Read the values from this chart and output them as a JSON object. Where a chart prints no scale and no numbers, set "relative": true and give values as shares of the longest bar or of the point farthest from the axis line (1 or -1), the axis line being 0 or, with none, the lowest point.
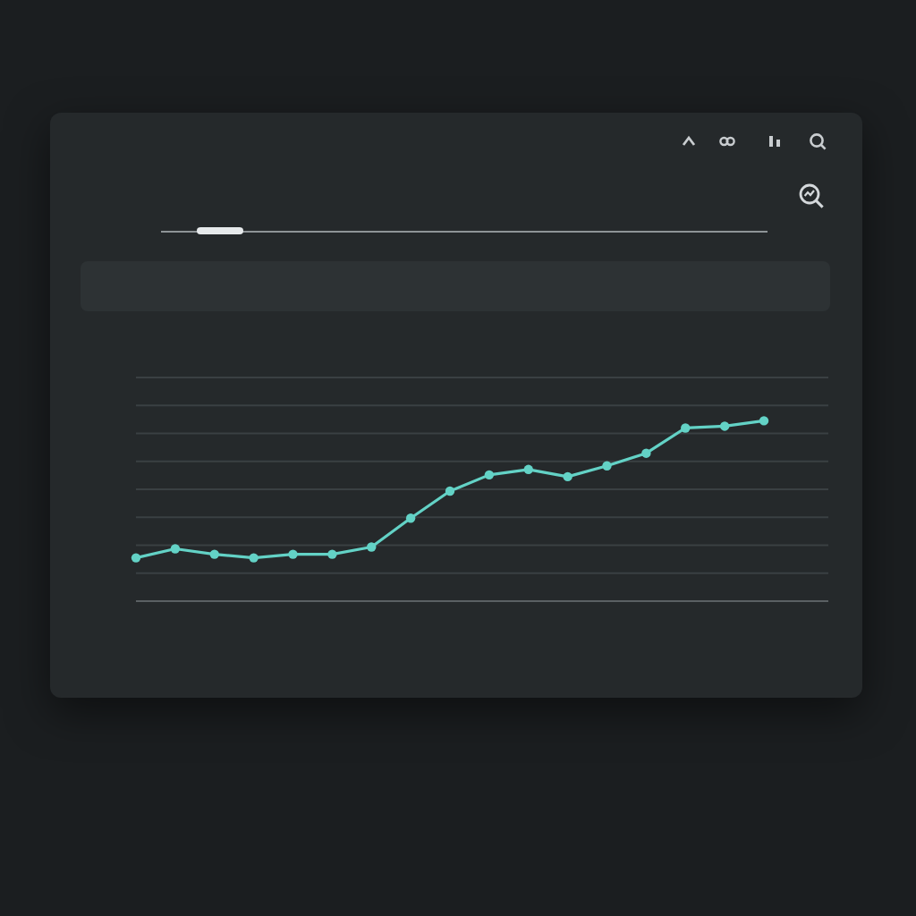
{
  "chart_data": {
    "type": "line",
    "categories": [
      null,
      null,
      null,
      null,
      null,
      null,
      null,
      null,
      null,
      null,
      null,
      null,
      null,
      null,
      null,
      null,
      null
    ],
    "series": [
      {
        "color": "#63d2c6",
        "values": [
          0.24,
          0.29,
          0.26,
          0.24,
          0.26,
          0.26,
          0.3,
          0.46,
          0.61,
          0.7,
          0.73,
          0.69,
          0.75,
          0.82,
          0.96,
          0.97,
          1
        ]
      }
    ],
    "relative": true,
    "grid": "y",
    "marker": "circle",
    "line_style": "solid"
  }
}
